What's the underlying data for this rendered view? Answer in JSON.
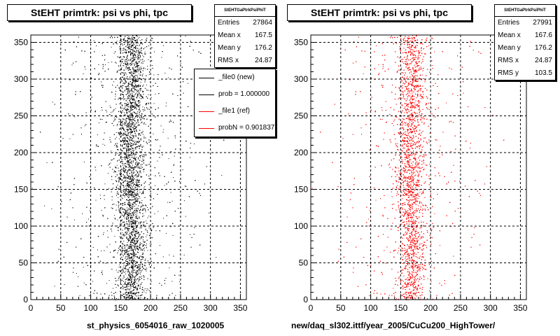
{
  "plots": [
    {
      "title": "StEHT primtrk: psi vs phi, tpc",
      "stats_name": "StEHTGaPtrkPsiPhiT",
      "stats": [
        {
          "label": "Entries",
          "value": "27864"
        },
        {
          "label": "Mean x",
          "value": "167.5"
        },
        {
          "label": "Mean y",
          "value": "176.2"
        },
        {
          "label": "RMS x",
          "value": "24.87"
        }
      ],
      "footer": "st_physics_6054016_raw_1020005",
      "color": "#000000"
    },
    {
      "title": "StEHT primtrk: psi vs phi, tpc",
      "stats_name": "StEHTGaPtrkPsiPhiT",
      "stats": [
        {
          "label": "Entries",
          "value": "27991"
        },
        {
          "label": "Mean x",
          "value": "167.6"
        },
        {
          "label": "Mean y",
          "value": "176.2"
        },
        {
          "label": "RMS x",
          "value": "24.87"
        },
        {
          "label": "RMS y",
          "value": "103.5"
        }
      ],
      "footer": "new/daq_sl302.ittf/year_2005/CuCu200_HighTower/",
      "color": "#ff0000"
    }
  ],
  "legend": [
    {
      "label": "_file0 (new)",
      "color": "#000000"
    },
    {
      "label": "prob = 1.000000",
      "color": "#000000"
    },
    {
      "label": "_file1 (ref)",
      "color": "#ff0000"
    },
    {
      "label": "probN = 0.901837",
      "color": "#ff0000"
    }
  ],
  "chart_data": [
    {
      "type": "scatter",
      "title": "StEHT primtrk: psi vs phi, tpc",
      "xlabel": "st_physics_6054016_raw_1020005",
      "ylabel": "",
      "xlim": [
        0,
        360
      ],
      "ylim": [
        0,
        360
      ],
      "xticks": [
        "0",
        "50",
        "100",
        "150",
        "200",
        "250",
        "300",
        "350"
      ],
      "yticks": [
        "0",
        "50",
        "100",
        "150",
        "200",
        "250",
        "300",
        "350"
      ],
      "grid": true,
      "series": [
        {
          "name": "_file0 (new)",
          "color": "#000000",
          "entries": 27864,
          "mean_x": 167.5,
          "mean_y": 176.2,
          "rms_x": 24.87
        }
      ]
    },
    {
      "type": "scatter",
      "title": "StEHT primtrk: psi vs phi, tpc",
      "xlabel": "new/daq_sl302.ittf/year_2005/CuCu200_HighTower/",
      "ylabel": "",
      "xlim": [
        0,
        360
      ],
      "ylim": [
        0,
        360
      ],
      "xticks": [
        "0",
        "50",
        "100",
        "150",
        "200",
        "250",
        "300",
        "350"
      ],
      "yticks": [
        "0",
        "50",
        "100",
        "150",
        "200",
        "250",
        "300",
        "350"
      ],
      "grid": true,
      "series": [
        {
          "name": "_file1 (ref)",
          "color": "#ff0000",
          "entries": 27991,
          "mean_x": 167.6,
          "mean_y": 176.2,
          "rms_x": 24.87,
          "rms_y": 103.5
        }
      ]
    }
  ]
}
